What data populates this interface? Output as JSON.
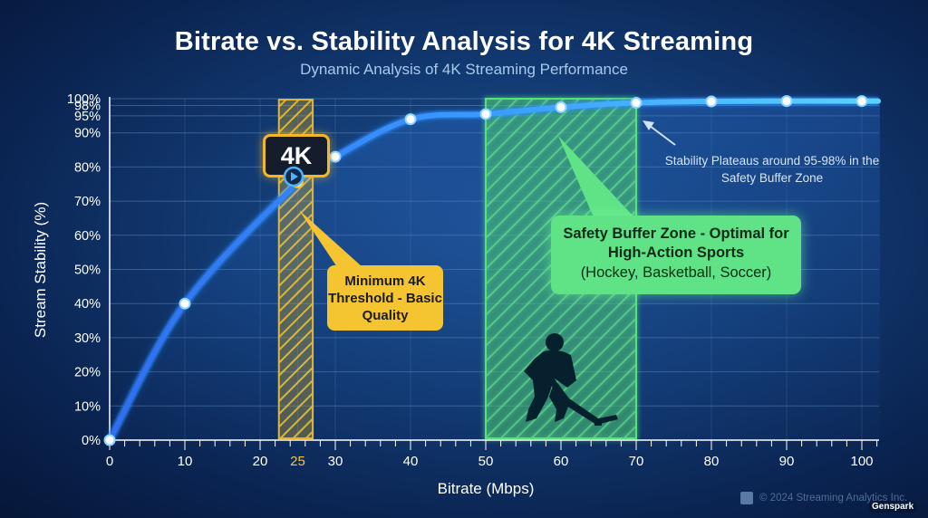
{
  "header": {
    "title": "Bitrate vs. Stability Analysis for 4K Streaming",
    "subtitle": "Dynamic Analysis of 4K Streaming Performance"
  },
  "chart_data": {
    "type": "line",
    "title": "Bitrate vs. Stability Analysis for 4K Streaming",
    "subtitle": "Dynamic Analysis of 4K Streaming Performance",
    "xlabel": "Bitrate (Mbps)",
    "ylabel": "Stream Stability (%)",
    "xlim": [
      0,
      100
    ],
    "x_ticks": [
      0,
      10,
      20,
      25,
      30,
      40,
      50,
      60,
      70,
      80,
      90,
      100
    ],
    "highlight_tick": 25,
    "y_ticks": [
      {
        "value": 0,
        "label": "0%"
      },
      {
        "value": 10,
        "label": "10%"
      },
      {
        "value": 20,
        "label": "20%"
      },
      {
        "value": 30,
        "label": "30%"
      },
      {
        "value": 40,
        "label": "40%"
      },
      {
        "value": 50,
        "label": "50%"
      },
      {
        "value": 60,
        "label": "60%"
      },
      {
        "value": 70,
        "label": "70%"
      },
      {
        "value": 80,
        "label": "80%"
      },
      {
        "value": 90,
        "label": "90%"
      },
      {
        "value": 95,
        "label": "95%"
      },
      {
        "value": 98,
        "label": "98%"
      },
      {
        "value": 100,
        "label": "100%"
      }
    ],
    "grid": true,
    "series": [
      {
        "x": [
          0,
          10,
          25,
          30,
          40,
          50,
          60,
          70,
          80,
          90,
          100
        ],
        "y": [
          0,
          40,
          75.5,
          83,
          94,
          95.5,
          97.5,
          98.8,
          99.2,
          99.3,
          99.3
        ],
        "color": "#44a6ff"
      }
    ],
    "bands": [
      {
        "x0": 22.5,
        "x1": 27,
        "color": "#e6b52e",
        "label": "Minimum 4K Threshold - Basic Quality"
      },
      {
        "x0": 50,
        "x1": 70,
        "color": "#58e07f",
        "label": "Safety Buffer Zone - Optimal for High-Action Sports (Hockey, Basketball, Soccer)"
      }
    ],
    "annotations": [
      {
        "text": "Minimum 4K Threshold - Basic Quality",
        "x": 25,
        "y": 75.5
      },
      {
        "text": "Safety Buffer Zone - Optimal for High-Action Sports",
        "detail": "(Hockey, Basketball, Soccer)",
        "x": 60
      },
      {
        "text": "Stability Plateaus around 95-98% in the Safety Buffer Zone",
        "x": 70,
        "y": 98.8
      }
    ]
  },
  "callouts": {
    "threshold": "Minimum 4K Threshold - Basic Quality",
    "safety_title": "Safety Buffer Zone - Optimal for High-Action Sports",
    "safety_sports": "(Hockey, Basketball, Soccer)",
    "plateau": "Stability Plateaus around 95-98% in the Safety Buffer Zone"
  },
  "badge": {
    "label": "4K",
    "icon": "play-icon"
  },
  "hockey_icon": "hockey-player-icon",
  "footer": {
    "copyright": "© 2024 Streaming Analytics Inc.",
    "brand": "Genspark"
  },
  "colors": {
    "background": "#0f3266",
    "curve": "#44a6ff",
    "threshold": "#f5c531",
    "safety": "#5fe386"
  }
}
